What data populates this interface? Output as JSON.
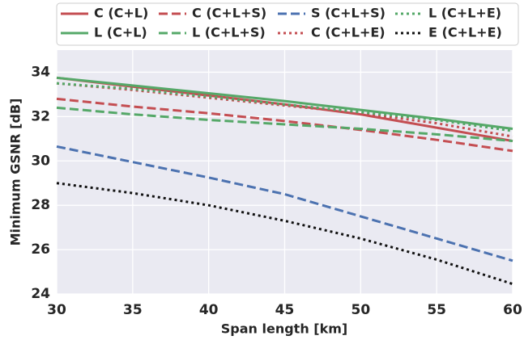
{
  "chart_data": {
    "type": "line",
    "x_label": "Span length [km]",
    "y_label": "Minimum GSNR [dB]",
    "x": [
      30,
      35,
      40,
      45,
      50,
      55,
      60
    ],
    "series": [
      {
        "name": "C (C+L)",
        "color": "#c44e52",
        "dash": "solid",
        "values": [
          33.75,
          33.35,
          32.95,
          32.55,
          32.1,
          31.5,
          30.9
        ]
      },
      {
        "name": "L (C+L)",
        "color": "#55a868",
        "dash": "solid",
        "values": [
          33.75,
          33.4,
          33.05,
          32.7,
          32.3,
          31.9,
          31.45
        ]
      },
      {
        "name": "C (C+L+S)",
        "color": "#c44e52",
        "dash": "dashed",
        "values": [
          32.8,
          32.45,
          32.15,
          31.8,
          31.4,
          30.95,
          30.45
        ]
      },
      {
        "name": "L (C+L+S)",
        "color": "#55a868",
        "dash": "dashed",
        "values": [
          32.4,
          32.1,
          31.85,
          31.65,
          31.45,
          31.2,
          30.9
        ]
      },
      {
        "name": "S (C+L+S)",
        "color": "#4c72b0",
        "dash": "dashed",
        "values": [
          30.65,
          29.95,
          29.25,
          28.5,
          27.5,
          26.5,
          25.5
        ]
      },
      {
        "name": "C (C+L+E)",
        "color": "#c44e52",
        "dash": "dotted",
        "values": [
          33.5,
          33.2,
          32.85,
          32.5,
          32.15,
          31.7,
          31.1
        ]
      },
      {
        "name": "L (C+L+E)",
        "color": "#55a868",
        "dash": "dotted",
        "values": [
          33.5,
          33.25,
          32.9,
          32.55,
          32.2,
          31.85,
          31.35
        ]
      },
      {
        "name": "E (C+L+E)",
        "color": "#111111",
        "dash": "dotted",
        "values": [
          29.0,
          28.55,
          28.0,
          27.3,
          26.5,
          25.55,
          24.45
        ]
      }
    ],
    "xlim": [
      30,
      60
    ],
    "xticks": [
      30,
      35,
      40,
      45,
      50,
      55,
      60
    ],
    "ylim": [
      24,
      35
    ],
    "yticks": [
      24,
      26,
      28,
      30,
      32,
      34
    ],
    "grid": true,
    "legend": "top"
  }
}
